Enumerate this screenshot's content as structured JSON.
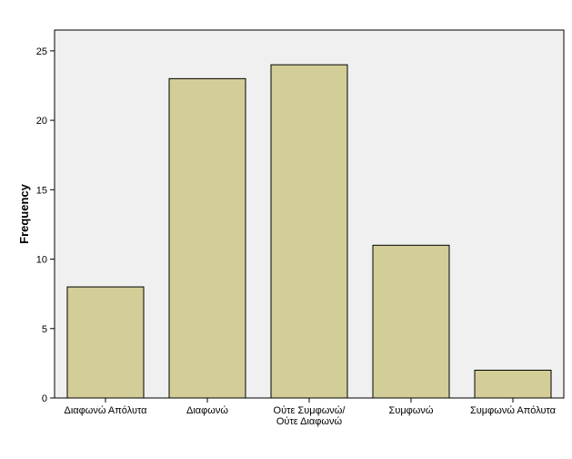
{
  "chart_data": {
    "type": "bar",
    "categories": [
      [
        "Διαφωνώ Απόλυτα"
      ],
      [
        "Διαφωνώ"
      ],
      [
        "Ούτε Συμφωνώ/",
        "Ούτε Διαφωνώ"
      ],
      [
        "Συμφωνώ"
      ],
      [
        "Συμφωνώ Απόλυτα"
      ]
    ],
    "values": [
      8,
      23,
      24,
      11,
      2
    ],
    "ylabel": "Frequency",
    "xlabel": "",
    "ylim": [
      0,
      26.5
    ],
    "yticks": [
      0,
      5,
      10,
      15,
      20,
      25
    ],
    "grid": false,
    "colors": {
      "plot_background": "#f0f0f0",
      "bar_fill": "#d3ce97",
      "bar_stroke": "#000000"
    }
  }
}
